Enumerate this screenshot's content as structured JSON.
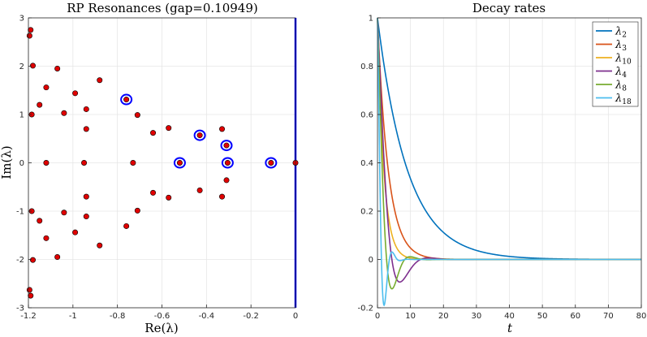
{
  "chart_data": [
    {
      "type": "scatter",
      "title": "RP Resonances (gap=0.10949)",
      "xlabel": "Re(λ)",
      "ylabel": "Im(λ)",
      "xlim": [
        -1.2,
        0
      ],
      "ylim": [
        -3,
        3
      ],
      "xticks": [
        -1.2,
        -1,
        -0.8,
        -0.6,
        -0.4,
        -0.2,
        0
      ],
      "xtick_labels": [
        "-1.2",
        "-1",
        "-0.8",
        "-0.6",
        "-0.4",
        "-0.2",
        "0"
      ],
      "yticks": [
        -3,
        -2,
        -1,
        0,
        1,
        2,
        3
      ],
      "ytick_labels": [
        "-3",
        "-2",
        "-1",
        "0",
        "1",
        "2",
        "3"
      ],
      "grid": true,
      "vertical_line_x": 0,
      "series": [
        {
          "name": "resonances",
          "points": [
            [
              -1.19,
              2.75
            ],
            [
              -1.195,
              2.63
            ],
            [
              -1.18,
              2.01
            ],
            [
              -1.07,
              1.95
            ],
            [
              -0.88,
              1.71
            ],
            [
              -1.12,
              1.56
            ],
            [
              -0.99,
              1.44
            ],
            [
              -1.15,
              1.2
            ],
            [
              -0.94,
              1.11
            ],
            [
              -1.04,
              1.03
            ],
            [
              -1.185,
              1.0
            ],
            [
              -0.71,
              0.99
            ],
            [
              -0.76,
              1.31
            ],
            [
              -0.57,
              0.72
            ],
            [
              -0.94,
              0.7
            ],
            [
              -0.64,
              0.62
            ],
            [
              -0.43,
              0.57
            ],
            [
              -0.33,
              0.7
            ],
            [
              -0.31,
              0.36
            ],
            [
              -1.12,
              0.0
            ],
            [
              -0.95,
              0.0
            ],
            [
              -0.73,
              0.0
            ],
            [
              -0.52,
              0.0
            ],
            [
              -0.305,
              0.0
            ],
            [
              -0.11,
              0.0
            ],
            [
              0.0,
              0.0
            ],
            [
              -0.31,
              -0.36
            ],
            [
              -0.43,
              -0.57
            ],
            [
              -0.33,
              -0.7
            ],
            [
              -0.57,
              -0.72
            ],
            [
              -0.64,
              -0.62
            ],
            [
              -0.71,
              -0.99
            ],
            [
              -0.76,
              -1.31
            ],
            [
              -0.94,
              -0.7
            ],
            [
              -1.04,
              -1.03
            ],
            [
              -1.185,
              -1.0
            ],
            [
              -0.94,
              -1.11
            ],
            [
              -1.15,
              -1.2
            ],
            [
              -0.99,
              -1.44
            ],
            [
              -1.12,
              -1.56
            ],
            [
              -0.88,
              -1.71
            ],
            [
              -1.07,
              -1.95
            ],
            [
              -1.18,
              -2.01
            ],
            [
              -1.195,
              -2.63
            ],
            [
              -1.19,
              -2.75
            ]
          ]
        },
        {
          "name": "highlighted",
          "points": [
            [
              -0.76,
              1.31
            ],
            [
              -0.43,
              0.57
            ],
            [
              -0.31,
              0.36
            ],
            [
              -0.52,
              0.0
            ],
            [
              -0.305,
              0.0
            ],
            [
              -0.11,
              0.0
            ]
          ]
        }
      ]
    },
    {
      "type": "line",
      "title": "Decay rates",
      "xlabel": "t",
      "ylabel": "",
      "xlim": [
        0,
        80
      ],
      "ylim": [
        -0.2,
        1
      ],
      "xticks": [
        0,
        10,
        20,
        30,
        40,
        50,
        60,
        70,
        80
      ],
      "xtick_labels": [
        "0",
        "10",
        "20",
        "30",
        "40",
        "50",
        "60",
        "70",
        "80"
      ],
      "yticks": [
        -0.2,
        0,
        0.2,
        0.4,
        0.6,
        0.8,
        1
      ],
      "ytick_labels": [
        "-0.2",
        "0",
        "0.2",
        "0.4",
        "0.6",
        "0.8",
        "1"
      ],
      "grid": true,
      "legend_position": "top-right",
      "series": [
        {
          "name": "λ2",
          "base": "λ",
          "sub": "2",
          "color": "#0072BD",
          "decay": 0.1095,
          "freq": 0
        },
        {
          "name": "λ3",
          "base": "λ",
          "sub": "3",
          "color": "#D95319",
          "decay": 0.305,
          "freq": 0
        },
        {
          "name": "λ10",
          "base": "λ",
          "sub": "10",
          "color": "#EDB120",
          "decay": 0.52,
          "freq": 0
        },
        {
          "name": "λ4",
          "base": "λ",
          "sub": "4",
          "color": "#7E2F8E",
          "decay": 0.31,
          "freq": 0.36
        },
        {
          "name": "λ8",
          "base": "λ",
          "sub": "8",
          "color": "#77AC30",
          "decay": 0.43,
          "freq": 0.57
        },
        {
          "name": "λ18",
          "base": "λ",
          "sub": "18",
          "color": "#4DBEEE",
          "decay": 0.76,
          "freq": 1.31
        }
      ]
    }
  ]
}
